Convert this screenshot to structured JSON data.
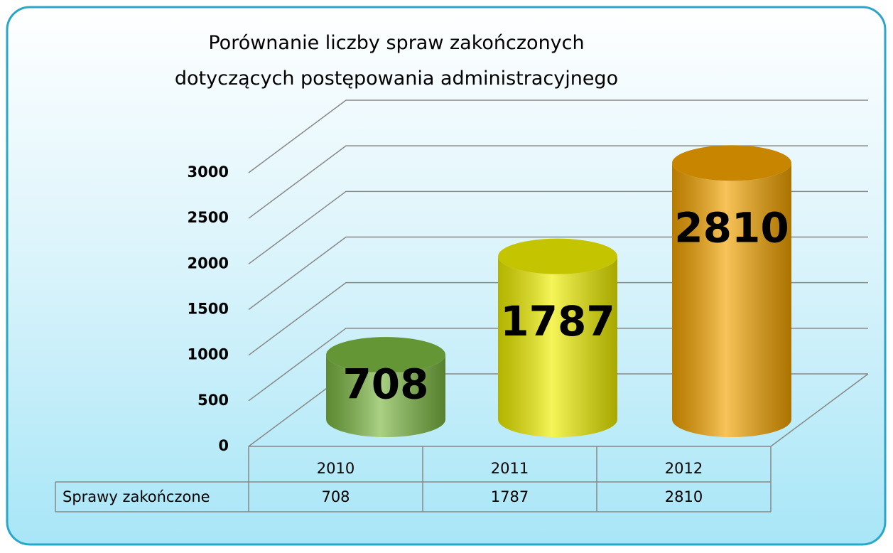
{
  "chart_data": {
    "type": "bar3d",
    "title": "Porównanie liczby spraw zakończonych dotyczących postępowania administracyjnego",
    "categories": [
      "2010",
      "2011",
      "2012"
    ],
    "series": [
      {
        "name": "Sprawy zakończone",
        "colors": [
          "#7cb842",
          "#f0f000",
          "#f4a400"
        ],
        "values": [
          708,
          1787,
          2810
        ]
      }
    ],
    "ylim": [
      0,
      3000
    ],
    "yticks": [
      0,
      500,
      1000,
      1500,
      2000,
      2500,
      3000
    ],
    "grid": true,
    "data_table": true
  }
}
